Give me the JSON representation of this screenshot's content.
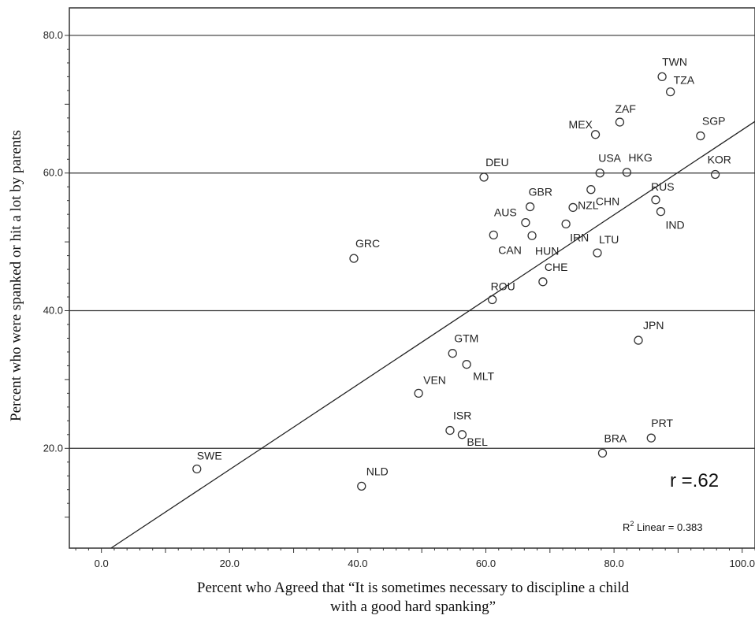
{
  "chart_data": {
    "type": "scatter",
    "xlabel_line1": "Percent who Agreed that “It is sometimes necessary to discipline a child",
    "xlabel_line2": "with  a good hard spanking”",
    "ylabel": "Percent who were spanked or hit a lot by parents",
    "xlim": [
      -5,
      102
    ],
    "ylim": [
      5.5,
      84
    ],
    "xticks": [
      0,
      20,
      40,
      60,
      80,
      100
    ],
    "xtick_labels": [
      "0.0",
      "20.0",
      "40.0",
      "60.0",
      "80.0",
      "100.0"
    ],
    "yticks": [
      20,
      40,
      60,
      80
    ],
    "ytick_labels": [
      "20.0",
      "40.0",
      "60.0",
      "80.0"
    ],
    "gridlines_y": [
      20,
      40,
      60,
      80
    ],
    "points": [
      {
        "label": "TWN",
        "x": 87.5,
        "y": 74.0
      },
      {
        "label": "TZA",
        "x": 88.8,
        "y": 71.8
      },
      {
        "label": "ZAF",
        "x": 80.9,
        "y": 67.4
      },
      {
        "label": "MEX",
        "x": 77.1,
        "y": 65.6
      },
      {
        "label": "SGP",
        "x": 93.5,
        "y": 65.4
      },
      {
        "label": "DEU",
        "x": 59.7,
        "y": 59.4
      },
      {
        "label": "USA",
        "x": 77.8,
        "y": 60.0
      },
      {
        "label": "HKG",
        "x": 82.0,
        "y": 60.1
      },
      {
        "label": "KOR",
        "x": 95.8,
        "y": 59.8
      },
      {
        "label": "GBR",
        "x": 66.9,
        "y": 55.1
      },
      {
        "label": "CHN",
        "x": 76.4,
        "y": 57.6
      },
      {
        "label": "RUS",
        "x": 86.5,
        "y": 56.1
      },
      {
        "label": "IND",
        "x": 87.3,
        "y": 54.4
      },
      {
        "label": "AUS",
        "x": 66.2,
        "y": 52.8
      },
      {
        "label": "NZL",
        "x": 73.6,
        "y": 55.0
      },
      {
        "label": "IRN",
        "x": 72.5,
        "y": 52.6
      },
      {
        "label": "CAN",
        "x": 61.2,
        "y": 51.0
      },
      {
        "label": "HUN",
        "x": 67.2,
        "y": 50.9
      },
      {
        "label": "LTU",
        "x": 77.4,
        "y": 48.4
      },
      {
        "label": "GRC",
        "x": 39.4,
        "y": 47.6
      },
      {
        "label": "CHE",
        "x": 68.9,
        "y": 44.2
      },
      {
        "label": "ROU",
        "x": 61.0,
        "y": 41.6
      },
      {
        "label": "JPN",
        "x": 83.8,
        "y": 35.7
      },
      {
        "label": "GTM",
        "x": 54.8,
        "y": 33.8
      },
      {
        "label": "MLT",
        "x": 57.0,
        "y": 32.2
      },
      {
        "label": "VEN",
        "x": 49.5,
        "y": 28.0
      },
      {
        "label": "ISR",
        "x": 54.4,
        "y": 22.6
      },
      {
        "label": "BEL",
        "x": 56.3,
        "y": 22.0
      },
      {
        "label": "PRT",
        "x": 85.8,
        "y": 21.5
      },
      {
        "label": "BRA",
        "x": 78.2,
        "y": 19.3
      },
      {
        "label": "SWE",
        "x": 14.9,
        "y": 17.0
      },
      {
        "label": "NLD",
        "x": 40.6,
        "y": 14.5
      }
    ],
    "fit_line": {
      "type": "linear",
      "x": [
        1.5,
        102
      ],
      "y": [
        5.5,
        67.5
      ]
    },
    "annotation_r": "r =.62",
    "annotation_r2": {
      "prefix": "R",
      "sup": "2",
      "suffix": " Linear = 0.383"
    }
  }
}
